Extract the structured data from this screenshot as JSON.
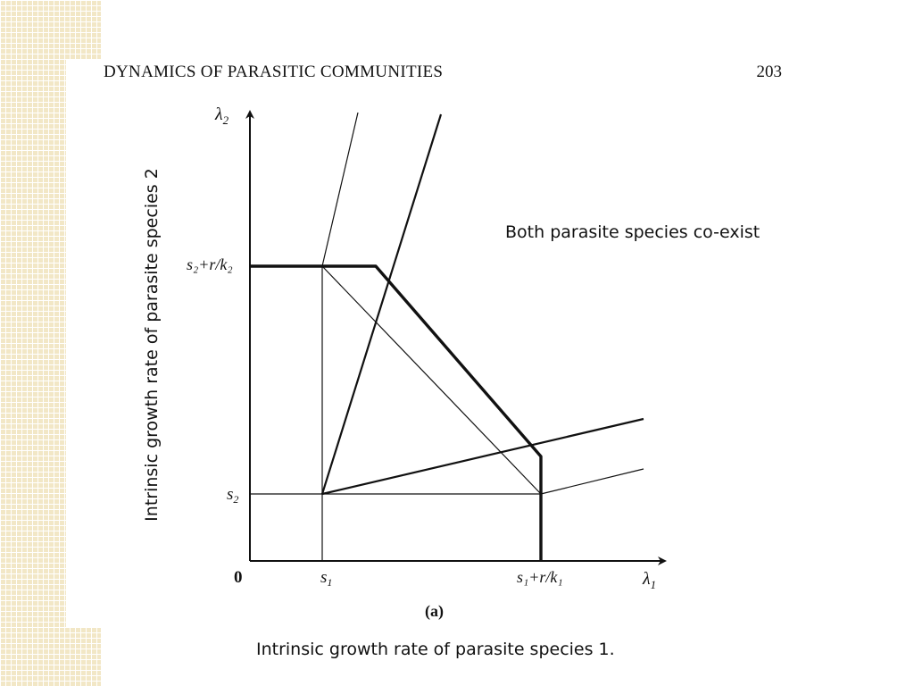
{
  "page_header": {
    "title": "DYNAMICS OF PARASITIC COMMUNITIES",
    "page_number": "203"
  },
  "diagram": {
    "y_axis_symbol": "λ",
    "y_axis_symbol_sub": "2",
    "x_axis_symbol": "λ",
    "x_axis_symbol_sub": "1",
    "origin_label": "0",
    "x_tick_s1": "s",
    "x_tick_s1_sub": "1",
    "x_tick_upper": "s₁+r/k₁",
    "y_tick_s2": "s",
    "y_tick_s2_sub": "2",
    "y_tick_upper": "s₂+r/k₂",
    "panel_label": "(a)"
  },
  "annotations": {
    "region_label": "Both parasite species co-exist",
    "x_axis_title": "Intrinsic growth rate of parasite species 1.",
    "y_axis_title": "Intrinsic growth rate of parasite species 2"
  }
}
